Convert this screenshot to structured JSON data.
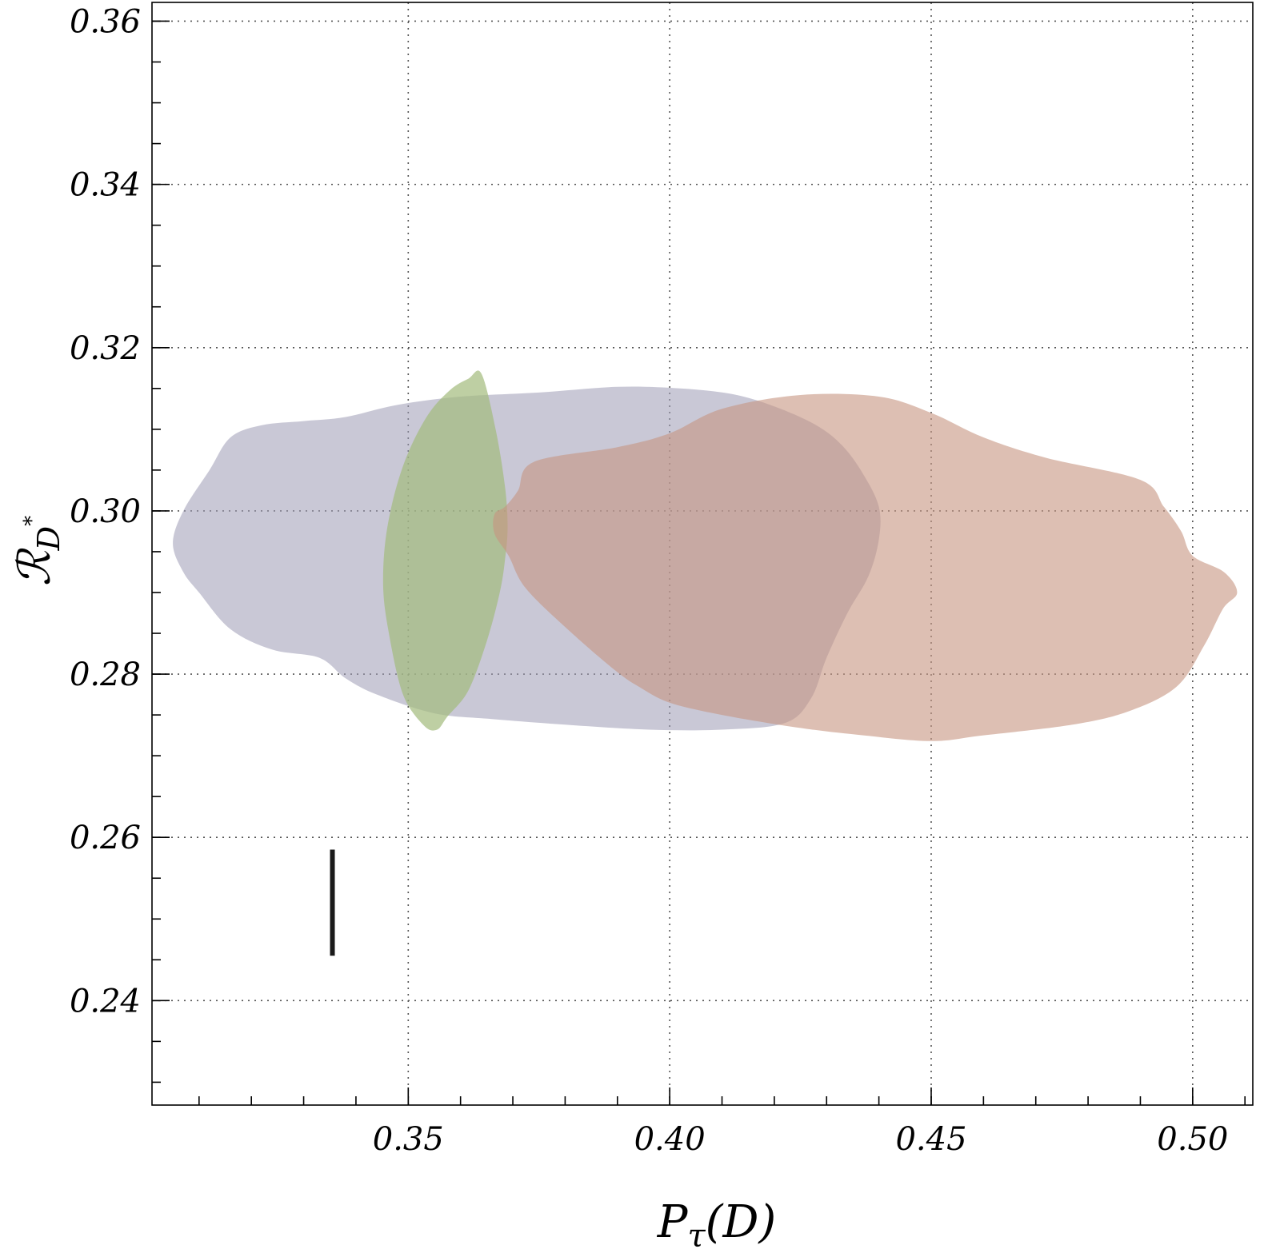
{
  "chart_data": {
    "type": "scatter",
    "xlabel": "P_τ(D)",
    "ylabel": "ℛ_D*",
    "xlim": [
      0.301,
      0.5115
    ],
    "ylim": [
      0.2272,
      0.3623
    ],
    "grid": true,
    "x_ticks": [
      "0.35",
      "0.40",
      "0.45",
      "0.50"
    ],
    "y_ticks": [
      "0.24",
      "0.26",
      "0.28",
      "0.30",
      "0.32",
      "0.34",
      "0.36"
    ],
    "colors": {
      "blue_region": "#9d9ab5",
      "green_region": "#a2bb7c",
      "orange_region": "#c79580",
      "marker": "#1a1a1a"
    },
    "regions": [
      {
        "color_key": "blue_region",
        "opacity": 0.55,
        "points": [
          [
            0.305,
            0.296
          ],
          [
            0.307,
            0.3
          ],
          [
            0.312,
            0.305
          ],
          [
            0.316,
            0.309
          ],
          [
            0.322,
            0.3105
          ],
          [
            0.33,
            0.311
          ],
          [
            0.338,
            0.3115
          ],
          [
            0.348,
            0.313
          ],
          [
            0.36,
            0.314
          ],
          [
            0.375,
            0.3145
          ],
          [
            0.39,
            0.3152
          ],
          [
            0.402,
            0.315
          ],
          [
            0.412,
            0.3143
          ],
          [
            0.42,
            0.3128
          ],
          [
            0.428,
            0.3105
          ],
          [
            0.433,
            0.308
          ],
          [
            0.437,
            0.3045
          ],
          [
            0.44,
            0.3005
          ],
          [
            0.44,
            0.2965
          ],
          [
            0.438,
            0.292
          ],
          [
            0.434,
            0.2875
          ],
          [
            0.43,
            0.282
          ],
          [
            0.427,
            0.277
          ],
          [
            0.422,
            0.274
          ],
          [
            0.41,
            0.2732
          ],
          [
            0.396,
            0.2732
          ],
          [
            0.38,
            0.2738
          ],
          [
            0.366,
            0.2745
          ],
          [
            0.355,
            0.2752
          ],
          [
            0.344,
            0.2775
          ],
          [
            0.338,
            0.2795
          ],
          [
            0.333,
            0.282
          ],
          [
            0.324,
            0.283
          ],
          [
            0.316,
            0.2855
          ],
          [
            0.31,
            0.29
          ],
          [
            0.307,
            0.2925
          ]
        ]
      },
      {
        "color_key": "green_region",
        "opacity": 0.7,
        "points": [
          [
            0.364,
            0.3168
          ],
          [
            0.3667,
            0.31
          ],
          [
            0.3685,
            0.303
          ],
          [
            0.369,
            0.298
          ],
          [
            0.3685,
            0.294
          ],
          [
            0.3675,
            0.29
          ],
          [
            0.365,
            0.284
          ],
          [
            0.3615,
            0.278
          ],
          [
            0.3575,
            0.2748
          ],
          [
            0.3555,
            0.2732
          ],
          [
            0.353,
            0.2737
          ],
          [
            0.349,
            0.2775
          ],
          [
            0.3463,
            0.285
          ],
          [
            0.3452,
            0.291
          ],
          [
            0.346,
            0.298
          ],
          [
            0.349,
            0.3055
          ],
          [
            0.3535,
            0.3115
          ],
          [
            0.358,
            0.3148
          ],
          [
            0.3615,
            0.3162
          ]
        ]
      },
      {
        "color_key": "orange_region",
        "opacity": 0.6,
        "points": [
          [
            0.3665,
            0.2996
          ],
          [
            0.3685,
            0.3005
          ],
          [
            0.371,
            0.3025
          ],
          [
            0.374,
            0.306
          ],
          [
            0.39,
            0.3078
          ],
          [
            0.4,
            0.3095
          ],
          [
            0.41,
            0.3125
          ],
          [
            0.425,
            0.3142
          ],
          [
            0.44,
            0.314
          ],
          [
            0.45,
            0.312
          ],
          [
            0.46,
            0.309
          ],
          [
            0.472,
            0.3065
          ],
          [
            0.49,
            0.3038
          ],
          [
            0.4945,
            0.3005
          ],
          [
            0.4978,
            0.2975
          ],
          [
            0.5,
            0.2945
          ],
          [
            0.506,
            0.2925
          ],
          [
            0.5085,
            0.29
          ],
          [
            0.5058,
            0.288
          ],
          [
            0.5022,
            0.2835
          ],
          [
            0.497,
            0.2785
          ],
          [
            0.488,
            0.2755
          ],
          [
            0.477,
            0.2738
          ],
          [
            0.46,
            0.2725
          ],
          [
            0.45,
            0.2718
          ],
          [
            0.437,
            0.2725
          ],
          [
            0.425,
            0.2734
          ],
          [
            0.41,
            0.275
          ],
          [
            0.4,
            0.2765
          ],
          [
            0.394,
            0.2785
          ],
          [
            0.3895,
            0.2805
          ],
          [
            0.381,
            0.2852
          ],
          [
            0.3725,
            0.2905
          ],
          [
            0.3692,
            0.2945
          ],
          [
            0.3665,
            0.2972
          ]
        ]
      }
    ],
    "markers": [
      {
        "type": "vertical_bar",
        "x": 0.3355,
        "y_min": 0.2455,
        "y_max": 0.2585
      }
    ]
  }
}
